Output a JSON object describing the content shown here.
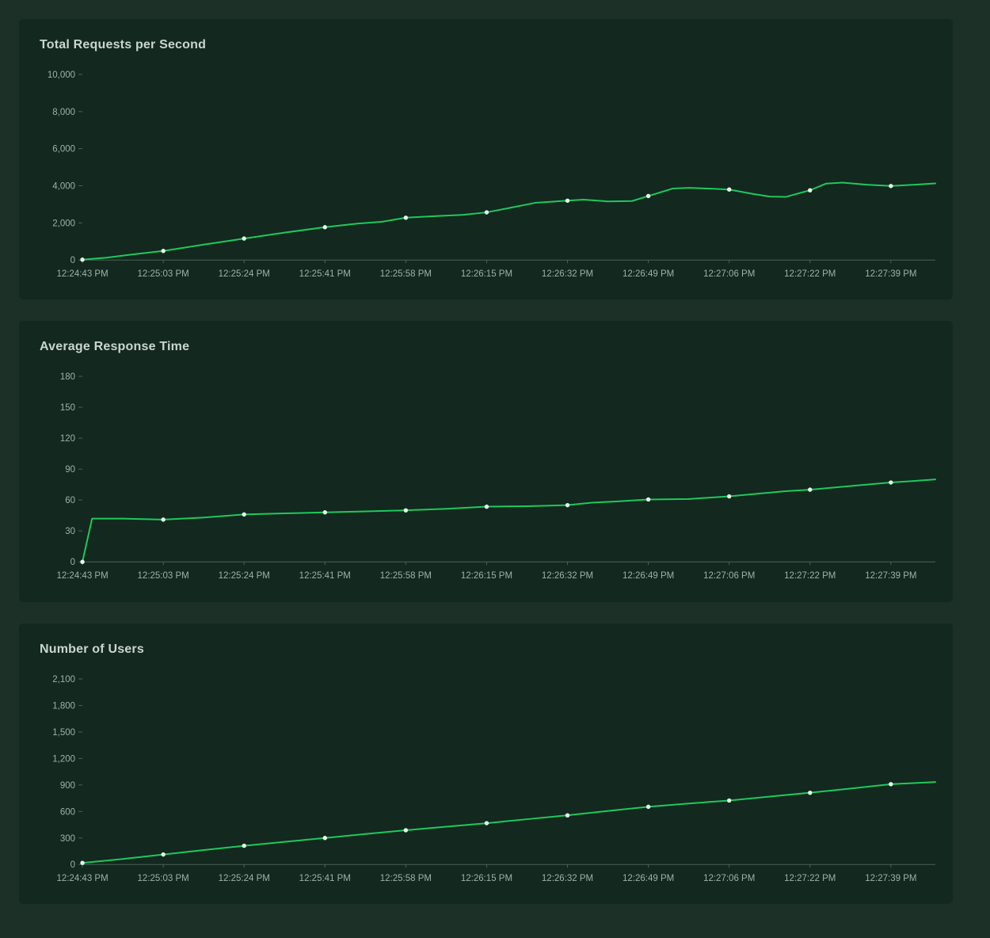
{
  "colors": {
    "page_background": "#1c3027",
    "panel_background": "#13281e",
    "title": "#c9d6cf",
    "axis_text": "#9fb2a6",
    "axis_line": "#4c6354",
    "line": "#1dc95e",
    "marker_fill": "#e8f8ee"
  },
  "chart_data": [
    {
      "type": "line",
      "title": "Total Requests per Second",
      "grid": false,
      "legend": "none",
      "x_tick_labels": [
        "12:24:43 PM",
        "12:25:03 PM",
        "12:25:24 PM",
        "12:25:41 PM",
        "12:25:58 PM",
        "12:26:15 PM",
        "12:26:32 PM",
        "12:26:49 PM",
        "12:27:06 PM",
        "12:27:22 PM",
        "12:27:39 PM"
      ],
      "y_tick_labels": [
        "0",
        "2,000",
        "4,000",
        "6,000",
        "8,000",
        "10,000"
      ],
      "ylim": [
        0,
        10000
      ],
      "x_max": 10.55,
      "points": [
        [
          0,
          20
        ],
        [
          0.3,
          130
        ],
        [
          0.6,
          290
        ],
        [
          1,
          490
        ],
        [
          1.5,
          830
        ],
        [
          2,
          1160
        ],
        [
          2.5,
          1480
        ],
        [
          3,
          1770
        ],
        [
          3.4,
          1960
        ],
        [
          3.7,
          2060
        ],
        [
          4,
          2280
        ],
        [
          4.4,
          2370
        ],
        [
          4.7,
          2430
        ],
        [
          5,
          2570
        ],
        [
          5.3,
          2820
        ],
        [
          5.6,
          3080
        ],
        [
          6,
          3200
        ],
        [
          6.2,
          3250
        ],
        [
          6.5,
          3160
        ],
        [
          6.8,
          3180
        ],
        [
          7,
          3450
        ],
        [
          7.3,
          3850
        ],
        [
          7.5,
          3890
        ],
        [
          7.8,
          3840
        ],
        [
          8,
          3800
        ],
        [
          8.3,
          3560
        ],
        [
          8.5,
          3420
        ],
        [
          8.7,
          3400
        ],
        [
          9,
          3760
        ],
        [
          9.2,
          4120
        ],
        [
          9.4,
          4170
        ],
        [
          9.7,
          4060
        ],
        [
          10,
          3990
        ],
        [
          10.3,
          4060
        ],
        [
          10.55,
          4130
        ]
      ]
    },
    {
      "type": "line",
      "title": "Average Response Time",
      "grid": false,
      "legend": "none",
      "x_tick_labels": [
        "12:24:43 PM",
        "12:25:03 PM",
        "12:25:24 PM",
        "12:25:41 PM",
        "12:25:58 PM",
        "12:26:15 PM",
        "12:26:32 PM",
        "12:26:49 PM",
        "12:27:06 PM",
        "12:27:22 PM",
        "12:27:39 PM"
      ],
      "y_tick_labels": [
        "0",
        "30",
        "60",
        "90",
        "120",
        "150",
        "180"
      ],
      "ylim": [
        0,
        180
      ],
      "x_max": 10.55,
      "points": [
        [
          0,
          0
        ],
        [
          0.12,
          42
        ],
        [
          0.5,
          42
        ],
        [
          1,
          41
        ],
        [
          1.5,
          43
        ],
        [
          2,
          46
        ],
        [
          2.5,
          47
        ],
        [
          3,
          48
        ],
        [
          3.5,
          49
        ],
        [
          4,
          50
        ],
        [
          4.5,
          51.5
        ],
        [
          5,
          53.5
        ],
        [
          5.5,
          54
        ],
        [
          6,
          55
        ],
        [
          6.3,
          57.5
        ],
        [
          6.6,
          58.5
        ],
        [
          7,
          60.5
        ],
        [
          7.5,
          61
        ],
        [
          8,
          63.5
        ],
        [
          8.4,
          66.5
        ],
        [
          8.7,
          68.5
        ],
        [
          9,
          70
        ],
        [
          9.5,
          73.5
        ],
        [
          10,
          77
        ],
        [
          10.3,
          78.5
        ],
        [
          10.55,
          80
        ]
      ]
    },
    {
      "type": "line",
      "title": "Number of Users",
      "grid": false,
      "legend": "none",
      "x_tick_labels": [
        "12:24:43 PM",
        "12:25:03 PM",
        "12:25:24 PM",
        "12:25:41 PM",
        "12:25:58 PM",
        "12:26:15 PM",
        "12:26:32 PM",
        "12:26:49 PM",
        "12:27:06 PM",
        "12:27:22 PM",
        "12:27:39 PM"
      ],
      "y_tick_labels": [
        "0",
        "300",
        "600",
        "900",
        "1,200",
        "1,500",
        "1,800",
        "2,100"
      ],
      "ylim": [
        0,
        2100
      ],
      "x_max": 10.55,
      "points": [
        [
          0,
          18
        ],
        [
          0.5,
          62
        ],
        [
          1,
          113
        ],
        [
          1.5,
          163
        ],
        [
          2,
          212
        ],
        [
          2.5,
          257
        ],
        [
          3,
          300
        ],
        [
          3.5,
          345
        ],
        [
          4,
          388
        ],
        [
          4.5,
          428
        ],
        [
          5,
          468
        ],
        [
          5.5,
          512
        ],
        [
          6,
          556
        ],
        [
          6.5,
          606
        ],
        [
          7,
          653
        ],
        [
          7.5,
          690
        ],
        [
          8,
          724
        ],
        [
          8.5,
          768
        ],
        [
          9,
          812
        ],
        [
          9.5,
          860
        ],
        [
          10,
          909
        ],
        [
          10.55,
          933
        ]
      ]
    }
  ]
}
